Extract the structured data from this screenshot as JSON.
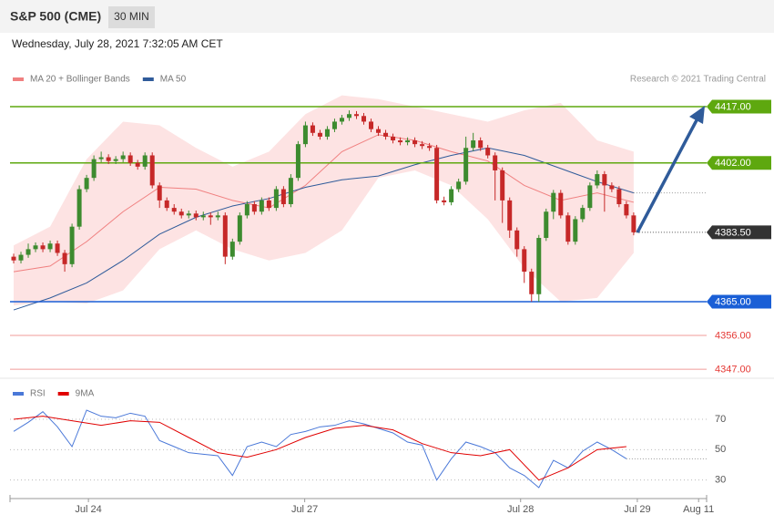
{
  "header": {
    "title": "S&P 500 (CME)",
    "interval": "30 MIN",
    "timestamp": "Wednesday, July 28, 2021 7:32:05 AM CET",
    "credit": "Research © 2021 Trading Central"
  },
  "chart_data": [
    {
      "type": "candlestick",
      "up_color": "#3d8b2f",
      "down_color": "#c62828",
      "xlim": [
        -0.5,
        95
      ],
      "ylim": [
        4346,
        4422
      ],
      "open": [
        4377,
        4376,
        4377.5,
        4379,
        4380,
        4379,
        4380.5,
        4378,
        4375,
        4385,
        4395,
        4398,
        4403,
        4403.5,
        4402.5,
        4403,
        4404,
        4402,
        4401,
        4404,
        4396,
        4392,
        4390,
        4389,
        4388,
        4388.5,
        4387.5,
        4388,
        4387.5,
        4388,
        4377,
        4381,
        4388,
        4391,
        4389,
        4392,
        4390,
        4395,
        4391,
        4398,
        4407,
        4412,
        4410,
        4409,
        4411,
        4413,
        4414,
        4415,
        4414.5,
        4413,
        4411,
        4410,
        4409,
        4408,
        4407.5,
        4408,
        4407,
        4406.5,
        4406,
        4392,
        4391.5,
        4395,
        4397,
        4406,
        4408,
        4406,
        4404,
        4400,
        4392,
        4384,
        4379,
        4373,
        4367,
        4382,
        4389,
        4394,
        4388,
        4381,
        4387,
        4390,
        4396,
        4399,
        4396,
        4395,
        4391,
        4388
      ],
      "high": [
        4377.8,
        4378.3,
        4380.5,
        4380.8,
        4380.8,
        4381.3,
        4381.3,
        4378.8,
        4385.8,
        4396,
        4398.8,
        4404,
        4405,
        4404.3,
        4403.8,
        4405,
        4404.8,
        4402.8,
        4404.8,
        4404.8,
        4396.8,
        4392.8,
        4391,
        4389.8,
        4389.3,
        4389.3,
        4389,
        4388.8,
        4389,
        4388.8,
        4381.8,
        4388.8,
        4391.8,
        4391.8,
        4392.8,
        4392.8,
        4395.8,
        4395.8,
        4399,
        4407.8,
        4413,
        4412.8,
        4410.8,
        4411.8,
        4413.8,
        4414.8,
        4416,
        4415.8,
        4415.3,
        4413.8,
        4411.8,
        4410.8,
        4409.8,
        4408.8,
        4408.8,
        4408.8,
        4407.8,
        4407.3,
        4406.8,
        4393,
        4395.8,
        4397.8,
        4409,
        4410,
        4408.8,
        4406.8,
        4404.8,
        4400.8,
        4392.8,
        4384.8,
        4379.8,
        4373.8,
        4382.8,
        4389.8,
        4394.8,
        4394.8,
        4388.8,
        4387.8,
        4390.8,
        4396.8,
        4400,
        4399.8,
        4396.8,
        4395.8,
        4391.8,
        4388.8
      ],
      "low": [
        4375.2,
        4375.2,
        4376.7,
        4378.2,
        4378.2,
        4378.2,
        4377.2,
        4373,
        4374.2,
        4384.2,
        4394.2,
        4397.2,
        4402.2,
        4401.7,
        4401.7,
        4402.2,
        4401.2,
        4400.2,
        4400.2,
        4395.2,
        4390,
        4389.2,
        4388.2,
        4387.2,
        4387.2,
        4386.7,
        4386.7,
        4385.5,
        4386.7,
        4375,
        4376.2,
        4380.2,
        4387.2,
        4388.2,
        4388.2,
        4389.2,
        4389.2,
        4390.2,
        4390.2,
        4397.2,
        4406.2,
        4409.2,
        4408.2,
        4408.2,
        4410.2,
        4412.2,
        4413.2,
        4413.7,
        4412.2,
        4410.2,
        4409.2,
        4408.2,
        4407.2,
        4406.7,
        4406.7,
        4406.2,
        4405.7,
        4405.2,
        4391.2,
        4390.7,
        4390.7,
        4394.2,
        4396.2,
        4405.2,
        4405.2,
        4403.2,
        4392,
        4386,
        4382,
        4377,
        4370,
        4365,
        4365,
        4381.2,
        4387,
        4387.2,
        4380.2,
        4380.2,
        4386.2,
        4389.2,
        4395.2,
        4389,
        4394.2,
        4390.2,
        4387.2,
        4382.7
      ],
      "close": [
        4376,
        4377.5,
        4379,
        4380,
        4379,
        4380.5,
        4378,
        4375,
        4385,
        4395,
        4398,
        4403,
        4403.5,
        4402.5,
        4403,
        4404,
        4402,
        4401,
        4404,
        4396,
        4392,
        4390,
        4389,
        4388,
        4388.5,
        4387.5,
        4388,
        4387.5,
        4388,
        4377,
        4381,
        4388,
        4391,
        4389,
        4392,
        4390,
        4395,
        4391,
        4398,
        4407,
        4412,
        4410,
        4409,
        4411,
        4413,
        4414,
        4415,
        4414.5,
        4413,
        4411,
        4410,
        4409,
        4408,
        4407.5,
        4408,
        4407,
        4406.5,
        4406,
        4392,
        4391.5,
        4395,
        4397,
        4406,
        4408,
        4406,
        4404,
        4400,
        4392,
        4384,
        4379,
        4373,
        4367,
        4382,
        4389,
        4394,
        4388,
        4381,
        4387,
        4390,
        4396,
        4399,
        4396,
        4395,
        4391,
        4388,
        4383.5
      ],
      "lines": [
        {
          "name": "MA 20 + Bollinger Bands",
          "color": "#f08080",
          "band_color": "#fde3e3",
          "x": [
            0,
            5,
            10,
            15,
            20,
            25,
            30,
            35,
            40,
            45,
            50,
            55,
            60,
            65,
            70,
            75,
            80,
            85
          ],
          "values": [
            4373,
            4374.5,
            4381,
            4389,
            4395.5,
            4395,
            4392,
            4390,
            4396,
            4405,
            4409.5,
            4408,
            4405,
            4402.5,
            4396,
            4392,
            4394,
            4391.5
          ],
          "upper": [
            4380,
            4385,
            4403,
            4413,
            4412,
            4406,
            4401,
            4405,
            4415,
            4420,
            4419,
            4417,
            4415,
            4413,
            4416,
            4418,
            4408,
            4405
          ],
          "lower": [
            4364,
            4365,
            4364.5,
            4368,
            4379,
            4384,
            4379,
            4376,
            4378,
            4384,
            4398,
            4400,
            4396,
            4387,
            4374,
            4365,
            4366,
            4378
          ]
        },
        {
          "name": "MA 50",
          "color": "#2f5b9a",
          "x": [
            0,
            5,
            10,
            15,
            20,
            25,
            30,
            35,
            40,
            45,
            50,
            55,
            60,
            65,
            70,
            75,
            80,
            85
          ],
          "values": [
            4362.8,
            4366,
            4370,
            4376,
            4383,
            4387.5,
            4390.5,
            4392.5,
            4395.5,
            4397.5,
            4398.5,
            4401.5,
            4404,
            4406,
            4404,
            4400.5,
            4397,
            4394
          ]
        }
      ],
      "levels": [
        {
          "value": 4417,
          "label": "4417.00",
          "color": "#5ea80f",
          "style": "solid",
          "boxed": true
        },
        {
          "value": 4402,
          "label": "4402.00",
          "color": "#5ea80f",
          "style": "solid",
          "boxed": true
        },
        {
          "value": 4383.5,
          "label": "4383.50",
          "color": "#333333",
          "style": "dotted",
          "boxed": true
        },
        {
          "value": 4365,
          "label": "4365.00",
          "color": "#1a5fd6",
          "style": "solid",
          "boxed": true
        },
        {
          "value": 4356,
          "label": "4356.00",
          "color": "#e53935",
          "style": "solid",
          "boxed": false
        },
        {
          "value": 4347,
          "label": "4347.00",
          "color": "#e53935",
          "style": "solid",
          "boxed": false
        }
      ]
    },
    {
      "type": "line",
      "xlim": [
        -0.5,
        95
      ],
      "ylim": [
        19,
        82
      ],
      "yticks": [
        30,
        50,
        70
      ],
      "xticks": [
        {
          "value": 10.25,
          "label": "Jul 24"
        },
        {
          "value": 39.9,
          "label": "Jul 27"
        },
        {
          "value": 69.5,
          "label": "Jul 28"
        },
        {
          "value": 85.5,
          "label": "Jul 29"
        },
        {
          "value": 93.9,
          "label": "Aug 11"
        }
      ],
      "series": [
        {
          "name": "RSI",
          "color": "#4a78d8",
          "x": [
            0,
            2,
            4,
            6,
            8,
            10,
            12,
            14,
            16,
            18,
            20,
            22,
            24,
            26,
            28,
            30,
            32,
            34,
            36,
            38,
            40,
            42,
            44,
            46,
            48,
            50,
            52,
            54,
            56,
            58,
            60,
            62,
            64,
            66,
            68,
            70,
            72,
            74,
            76,
            78,
            80,
            82,
            84
          ],
          "values": [
            62,
            68,
            75,
            65,
            52,
            76,
            72,
            71,
            74,
            72,
            56,
            52,
            48,
            47,
            46,
            33,
            52,
            55,
            52,
            60,
            62,
            65,
            66,
            69,
            67,
            64,
            61,
            55,
            53,
            30,
            44,
            55,
            52,
            48,
            38,
            33,
            25,
            43,
            38,
            49,
            55,
            50,
            44
          ]
        },
        {
          "name": "9MA",
          "color": "#e00000",
          "x": [
            0,
            4,
            8,
            12,
            16,
            20,
            24,
            28,
            32,
            36,
            40,
            44,
            48,
            52,
            56,
            60,
            64,
            68,
            72,
            76,
            80,
            84
          ],
          "values": [
            70,
            72,
            69,
            66,
            69,
            68,
            58,
            48,
            45,
            50,
            58,
            64,
            66,
            63,
            54,
            48,
            46,
            50,
            30,
            38,
            50,
            52
          ]
        }
      ]
    }
  ]
}
